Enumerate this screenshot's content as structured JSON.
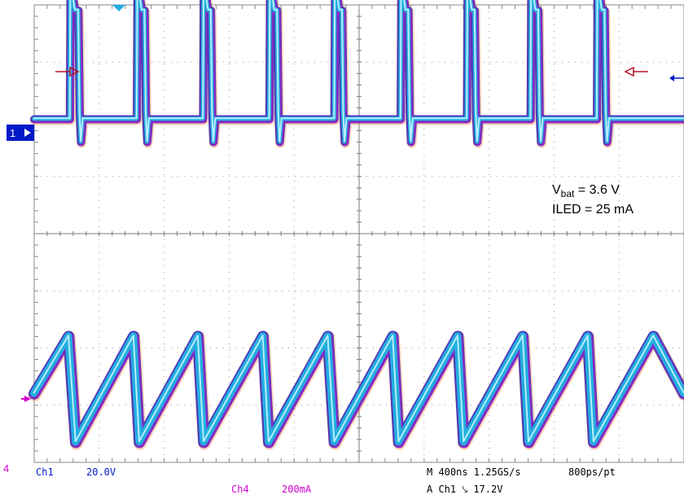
{
  "chart_data": {
    "type": "line",
    "subtype": "oscilloscope-capture",
    "grid": true,
    "divisions": {
      "x": 10,
      "y": 8
    },
    "annotations": {
      "vbat_prefix": "V",
      "vbat_sub": "bat",
      "vbat_value": " = 3.6 V",
      "iled": "ILED = 25 mA"
    },
    "markers": {
      "ch1_ground": "1",
      "ch4_ground": "4"
    },
    "readout": {
      "ch1_label": "Ch1",
      "ch1_scale": "20.0V",
      "ch4_label": "Ch4",
      "ch4_scale": "200mA",
      "timebase": "M 400ns 1.25GS/s",
      "resolution": "800ps/pt",
      "trigger": "A Ch1 ⤥ 17.2V"
    },
    "series": [
      {
        "channel": "Ch1",
        "color": "#22aee0",
        "x_div": [
          0.0,
          0.55,
          0.56,
          0.57,
          0.62,
          0.63,
          0.68,
          0.7,
          0.72,
          0.75,
          1.05,
          1.58,
          1.59,
          1.6,
          1.65,
          1.66,
          1.7,
          1.72,
          1.74,
          1.77,
          2.07,
          2.6,
          2.61,
          2.62,
          2.67,
          2.68,
          2.72,
          2.74,
          2.76,
          2.79,
          3.09,
          3.62,
          3.63,
          3.64,
          3.69,
          3.7,
          3.74,
          3.76,
          3.78,
          3.81,
          4.11,
          4.62,
          4.63,
          4.64,
          4.69,
          4.7,
          4.74,
          4.76,
          4.78,
          4.81,
          5.11,
          5.64,
          5.65,
          5.66,
          5.71,
          5.72,
          5.76,
          5.78,
          5.8,
          5.83,
          6.13,
          6.66,
          6.67,
          6.68,
          6.73,
          6.74,
          6.78,
          6.8,
          6.82,
          6.85,
          7.15,
          7.64,
          7.65,
          7.66,
          7.71,
          7.72,
          7.76,
          7.78,
          7.8,
          7.83,
          8.13,
          8.66,
          8.67,
          8.68,
          8.73,
          8.74,
          8.78,
          8.8,
          8.82,
          8.85,
          9.15,
          10.0
        ],
        "y_div": [
          2.0,
          2.0,
          4.25,
          4.35,
          3.95,
          3.9,
          3.9,
          2.1,
          1.6,
          2.0,
          2.0,
          2.0,
          4.25,
          4.35,
          3.95,
          3.9,
          3.9,
          2.1,
          1.6,
          2.0,
          2.0,
          2.0,
          4.25,
          4.35,
          3.95,
          3.9,
          3.9,
          2.1,
          1.6,
          2.0,
          2.0,
          2.0,
          4.25,
          4.35,
          3.95,
          3.9,
          3.9,
          2.1,
          1.6,
          2.0,
          2.0,
          2.0,
          4.25,
          4.35,
          3.95,
          3.9,
          3.9,
          2.1,
          1.6,
          2.0,
          2.0,
          2.0,
          4.25,
          4.35,
          3.95,
          3.9,
          3.9,
          2.1,
          1.6,
          2.0,
          2.0,
          2.0,
          4.25,
          4.35,
          3.95,
          3.9,
          3.9,
          2.1,
          1.6,
          2.0,
          2.0,
          2.0,
          4.25,
          4.35,
          3.95,
          3.9,
          3.9,
          2.1,
          1.6,
          2.0,
          2.0,
          2.0,
          4.25,
          4.35,
          3.95,
          3.9,
          3.9,
          2.1,
          1.6,
          2.0,
          2.0,
          2.0
        ]
      },
      {
        "channel": "Ch4",
        "color": "#22aee0",
        "x_div": [
          0.0,
          0.53,
          0.64,
          1.53,
          1.62,
          2.52,
          2.61,
          3.52,
          3.61,
          4.52,
          4.62,
          5.52,
          5.61,
          6.52,
          6.61,
          7.52,
          7.61,
          8.52,
          8.61,
          9.53,
          10.0
        ],
        "y_div": [
          -2.8,
          -1.8,
          -3.65,
          -1.8,
          -3.65,
          -1.8,
          -3.65,
          -1.8,
          -3.65,
          -1.8,
          -3.65,
          -1.8,
          -3.65,
          -1.8,
          -3.65,
          -1.8,
          -3.65,
          -1.8,
          -3.65,
          -1.8,
          -2.8
        ]
      }
    ]
  }
}
